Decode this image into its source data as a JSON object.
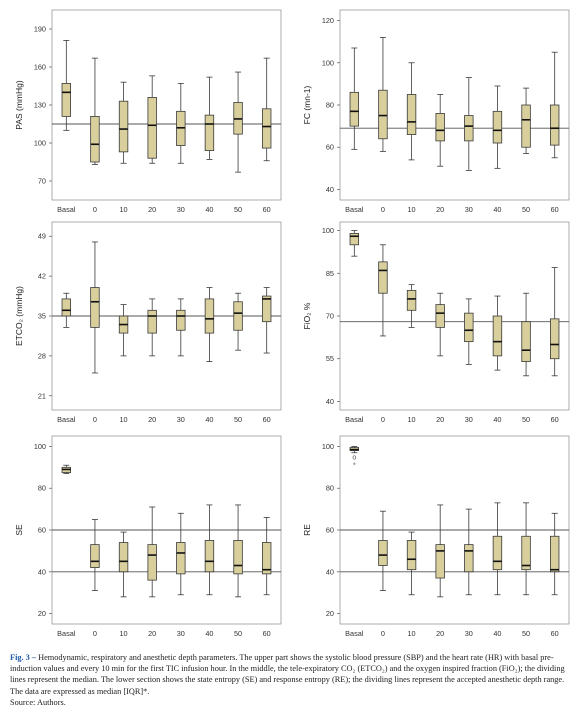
{
  "chart_data": [
    {
      "type": "box",
      "ylabel": "PAS (mmHg)",
      "ylim": [
        55,
        205
      ],
      "yticks": [
        70,
        100,
        130,
        160,
        190
      ],
      "categories": [
        "Basal",
        "0",
        "10",
        "20",
        "30",
        "40",
        "50",
        "60"
      ],
      "reference_lines": [
        115
      ],
      "boxes": [
        {
          "min": 110,
          "q1": 121,
          "median": 140,
          "q3": 147,
          "max": 181
        },
        {
          "min": 83,
          "q1": 85,
          "median": 99,
          "q3": 121,
          "max": 167
        },
        {
          "min": 84,
          "q1": 93,
          "median": 111,
          "q3": 133,
          "max": 148
        },
        {
          "min": 84,
          "q1": 88,
          "median": 114,
          "q3": 136,
          "max": 153
        },
        {
          "min": 84,
          "q1": 98,
          "median": 112,
          "q3": 125,
          "max": 147
        },
        {
          "min": 87,
          "q1": 94,
          "median": 115,
          "q3": 122,
          "max": 152
        },
        {
          "min": 77,
          "q1": 107,
          "median": 119,
          "q3": 132,
          "max": 156
        },
        {
          "min": 86,
          "q1": 96,
          "median": 113,
          "q3": 127,
          "max": 167
        }
      ]
    },
    {
      "type": "box",
      "ylabel": "FC (mn-1)",
      "ylim": [
        35,
        125
      ],
      "yticks": [
        40,
        60,
        80,
        100,
        120
      ],
      "categories": [
        "Basal",
        "0",
        "10",
        "20",
        "30",
        "40",
        "50",
        "60"
      ],
      "reference_lines": [
        69
      ],
      "boxes": [
        {
          "min": 59,
          "q1": 70,
          "median": 77,
          "q3": 86,
          "max": 107
        },
        {
          "min": 58,
          "q1": 64,
          "median": 75,
          "q3": 87,
          "max": 112
        },
        {
          "min": 54,
          "q1": 66,
          "median": 72,
          "q3": 85,
          "max": 100
        },
        {
          "min": 51,
          "q1": 63,
          "median": 68,
          "q3": 76,
          "max": 85
        },
        {
          "min": 49,
          "q1": 63,
          "median": 70,
          "q3": 75,
          "max": 93
        },
        {
          "min": 50,
          "q1": 62,
          "median": 68,
          "q3": 77,
          "max": 89
        },
        {
          "min": 57,
          "q1": 60,
          "median": 73,
          "q3": 80,
          "max": 88
        },
        {
          "min": 55,
          "q1": 61,
          "median": 69,
          "q3": 80,
          "max": 105
        }
      ]
    },
    {
      "type": "box",
      "ylabel": "ETCO₂ (mmHg)",
      "ylim": [
        18.5,
        51.5
      ],
      "yticks": [
        21,
        28,
        35,
        42,
        49
      ],
      "categories": [
        "Basal",
        "0",
        "10",
        "20",
        "30",
        "40",
        "50",
        "60"
      ],
      "reference_lines": [
        35
      ],
      "boxes": [
        {
          "min": 33,
          "q1": 35,
          "median": 36,
          "q3": 38,
          "max": 39
        },
        {
          "min": 25,
          "q1": 33,
          "median": 37.5,
          "q3": 40,
          "max": 48
        },
        {
          "min": 28,
          "q1": 32,
          "median": 33.5,
          "q3": 35,
          "max": 37
        },
        {
          "min": 28,
          "q1": 32,
          "median": 35,
          "q3": 36,
          "max": 38
        },
        {
          "min": 28,
          "q1": 32.5,
          "median": 35,
          "q3": 36,
          "max": 38
        },
        {
          "min": 27,
          "q1": 32,
          "median": 34.5,
          "q3": 38,
          "max": 40
        },
        {
          "min": 29,
          "q1": 32.5,
          "median": 35.5,
          "q3": 37.5,
          "max": 39
        },
        {
          "min": 28.5,
          "q1": 34,
          "median": 38,
          "q3": 38.5,
          "max": 40
        }
      ]
    },
    {
      "type": "box",
      "ylabel": "FiO₂ %",
      "ylim": [
        37,
        103
      ],
      "yticks": [
        40,
        55,
        70,
        85,
        100
      ],
      "categories": [
        "Basal",
        "0",
        "10",
        "20",
        "30",
        "40",
        "50",
        "60"
      ],
      "reference_lines": [
        68
      ],
      "boxes": [
        {
          "min": 91,
          "q1": 95,
          "median": 98,
          "q3": 99,
          "max": 100
        },
        {
          "min": 63,
          "q1": 78,
          "median": 86,
          "q3": 89,
          "max": 95
        },
        {
          "min": 66,
          "q1": 72,
          "median": 76,
          "q3": 79,
          "max": 81
        },
        {
          "min": 56,
          "q1": 66,
          "median": 71,
          "q3": 74,
          "max": 78
        },
        {
          "min": 53,
          "q1": 61,
          "median": 65,
          "q3": 71,
          "max": 76
        },
        {
          "min": 51,
          "q1": 56,
          "median": 61,
          "q3": 70,
          "max": 77
        },
        {
          "min": 49,
          "q1": 54,
          "median": 58,
          "q3": 68,
          "max": 78
        },
        {
          "min": 49,
          "q1": 55,
          "median": 60,
          "q3": 69,
          "max": 87
        }
      ]
    },
    {
      "type": "box",
      "ylabel": "SE",
      "ylim": [
        15,
        105
      ],
      "yticks": [
        20,
        40,
        60,
        80,
        100
      ],
      "categories": [
        "Basal",
        "0",
        "10",
        "20",
        "30",
        "40",
        "50",
        "60"
      ],
      "reference_lines": [
        60,
        40
      ],
      "boxes": [
        {
          "min": 87,
          "q1": 87.5,
          "median": 89,
          "q3": 90,
          "max": 91
        },
        {
          "min": 31,
          "q1": 42,
          "median": 45,
          "q3": 53,
          "max": 65
        },
        {
          "min": 28,
          "q1": 40,
          "median": 45,
          "q3": 54,
          "max": 59
        },
        {
          "min": 28,
          "q1": 36,
          "median": 48,
          "q3": 53,
          "max": 71
        },
        {
          "min": 29,
          "q1": 39,
          "median": 49,
          "q3": 54,
          "max": 68
        },
        {
          "min": 29,
          "q1": 40,
          "median": 45,
          "q3": 55,
          "max": 72
        },
        {
          "min": 28,
          "q1": 39,
          "median": 43,
          "q3": 55,
          "max": 72
        },
        {
          "min": 29,
          "q1": 39,
          "median": 41,
          "q3": 54,
          "max": 66
        }
      ]
    },
    {
      "type": "box",
      "ylabel": "RE",
      "ylim": [
        15,
        105
      ],
      "yticks": [
        20,
        40,
        60,
        80,
        100
      ],
      "categories": [
        "Basal",
        "0",
        "10",
        "20",
        "30",
        "40",
        "50",
        "60"
      ],
      "reference_lines": [
        60,
        40
      ],
      "boxes": [
        {
          "min": 97,
          "q1": 98,
          "median": 98.5,
          "q3": 99.5,
          "max": 100,
          "outliers": [
            "o",
            "*"
          ],
          "outlier_values": [
            95,
            91
          ]
        },
        {
          "min": 31,
          "q1": 43,
          "median": 48,
          "q3": 55,
          "max": 69
        },
        {
          "min": 29,
          "q1": 41,
          "median": 46,
          "q3": 55,
          "max": 59
        },
        {
          "min": 28,
          "q1": 37,
          "median": 50,
          "q3": 53,
          "max": 72
        },
        {
          "min": 29,
          "q1": 40,
          "median": 50,
          "q3": 53,
          "max": 70
        },
        {
          "min": 29,
          "q1": 41,
          "median": 45,
          "q3": 57,
          "max": 73
        },
        {
          "min": 29,
          "q1": 41,
          "median": 43,
          "q3": 57,
          "max": 73
        },
        {
          "min": 29,
          "q1": 40,
          "median": 41,
          "q3": 57,
          "max": 68
        }
      ]
    }
  ],
  "caption": {
    "fig_label": "Fig. 3 –",
    "text": " Hemodynamic, respiratory and anesthetic depth parameters. The upper part shows the systolic blood pressure (SBP) and the heart rate (HR) with basal pre-induction values and every 10 min for the first TIC infusion hour. In the middle, the tele-expiratory CO₂ (ETCO₂) and the oxygen inspired fraction (FiO₂); the dividing lines represent the median. The lower section shows the state entropy (SE) and response entropy (RE); the dividing lines represent the accepted anesthetic depth range. The data are expressed as median [IQR]*.",
    "source": "Source: Authors."
  }
}
